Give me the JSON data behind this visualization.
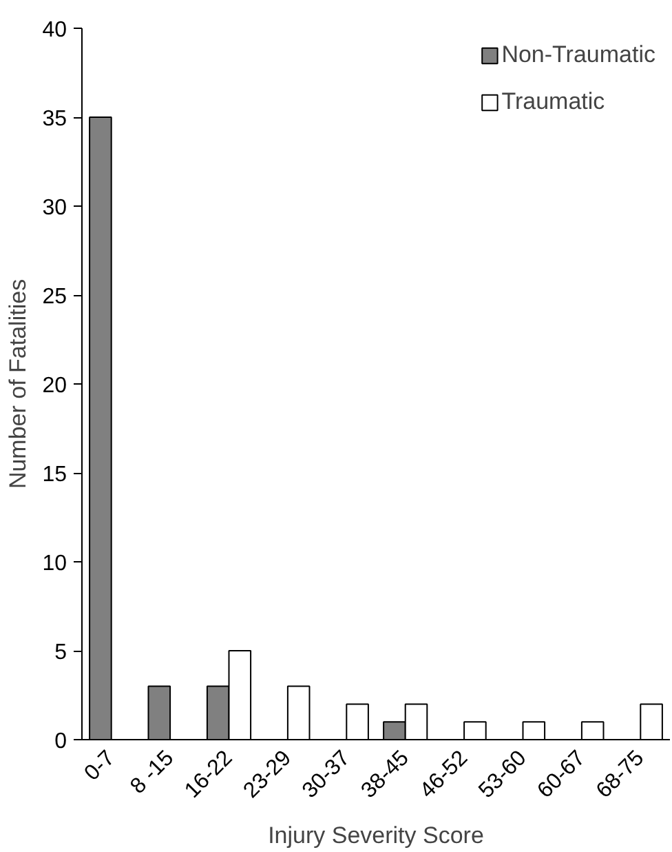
{
  "chart_data": {
    "type": "bar",
    "xlabel": "Injury Severity Score",
    "ylabel": "Number of Fatalities",
    "categories": [
      "0-7",
      "8 -15",
      "16-22",
      "23-29",
      "30-37",
      "38-45",
      "46-52",
      "53-60",
      "60-67",
      "68-75"
    ],
    "series": [
      {
        "name": "Non-Traumatic",
        "color": "#808080",
        "values": [
          35,
          3,
          3,
          0,
          0,
          1,
          0,
          0,
          0,
          0
        ]
      },
      {
        "name": "Traumatic",
        "color": "#ffffff",
        "values": [
          0,
          0,
          5,
          3,
          2,
          2,
          1,
          1,
          1,
          2
        ]
      }
    ],
    "ylim": [
      0,
      40
    ],
    "yticks": [
      0,
      5,
      10,
      15,
      20,
      25,
      30,
      35,
      40
    ],
    "grid": false,
    "legend": "top right"
  }
}
